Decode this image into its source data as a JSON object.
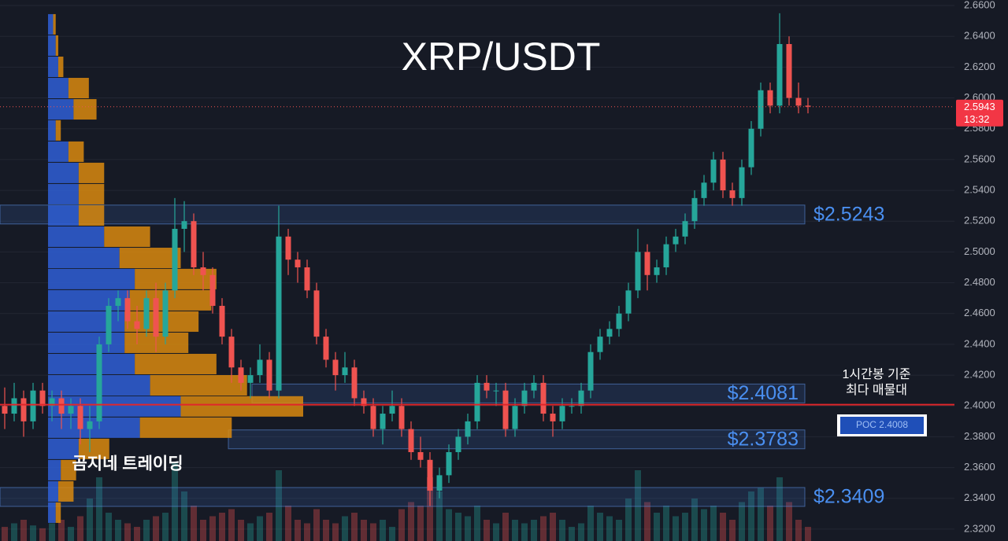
{
  "chart_data": {
    "type": "candlestick",
    "title": "XRP/USDT",
    "watermark": "곰지네 트레이딩",
    "candles": [
      [
        2.4,
        2.412,
        2.385,
        2.395
      ],
      [
        2.395,
        2.415,
        2.39,
        2.405
      ],
      [
        2.405,
        2.41,
        2.38,
        2.39
      ],
      [
        2.39,
        2.415,
        2.385,
        2.41
      ],
      [
        2.41,
        2.415,
        2.395,
        2.4
      ],
      [
        2.4,
        2.41,
        2.39,
        2.405
      ],
      [
        2.405,
        2.41,
        2.385,
        2.395
      ],
      [
        2.395,
        2.405,
        2.385,
        2.4
      ],
      [
        2.4,
        2.405,
        2.375,
        2.385
      ],
      [
        2.385,
        2.4,
        2.37,
        2.39
      ],
      [
        2.39,
        2.445,
        2.385,
        2.44
      ],
      [
        2.44,
        2.47,
        2.435,
        2.465
      ],
      [
        2.465,
        2.475,
        2.455,
        2.47
      ],
      [
        2.47,
        2.475,
        2.45,
        2.455
      ],
      [
        2.455,
        2.465,
        2.44,
        2.45
      ],
      [
        2.45,
        2.475,
        2.445,
        2.47
      ],
      [
        2.47,
        2.48,
        2.435,
        2.445
      ],
      [
        2.445,
        2.48,
        2.44,
        2.475
      ],
      [
        2.475,
        2.535,
        2.47,
        2.515
      ],
      [
        2.515,
        2.533,
        2.5,
        2.52
      ],
      [
        2.52,
        2.525,
        2.485,
        2.49
      ],
      [
        2.49,
        2.5,
        2.475,
        2.485
      ],
      [
        2.485,
        2.49,
        2.46,
        2.465
      ],
      [
        2.465,
        2.47,
        2.44,
        2.445
      ],
      [
        2.445,
        2.45,
        2.415,
        2.425
      ],
      [
        2.425,
        2.43,
        2.41,
        2.415
      ],
      [
        2.415,
        2.425,
        2.405,
        2.42
      ],
      [
        2.42,
        2.44,
        2.415,
        2.43
      ],
      [
        2.43,
        2.435,
        2.405,
        2.41
      ],
      [
        2.41,
        2.53,
        2.405,
        2.51
      ],
      [
        2.51,
        2.515,
        2.485,
        2.495
      ],
      [
        2.495,
        2.5,
        2.48,
        2.49
      ],
      [
        2.49,
        2.495,
        2.47,
        2.475
      ],
      [
        2.475,
        2.48,
        2.44,
        2.445
      ],
      [
        2.445,
        2.45,
        2.425,
        2.43
      ],
      [
        2.43,
        2.435,
        2.41,
        2.42
      ],
      [
        2.42,
        2.435,
        2.415,
        2.425
      ],
      [
        2.425,
        2.43,
        2.4,
        2.405
      ],
      [
        2.405,
        2.41,
        2.395,
        2.4
      ],
      [
        2.4,
        2.405,
        2.38,
        2.385
      ],
      [
        2.385,
        2.4,
        2.375,
        2.395
      ],
      [
        2.395,
        2.41,
        2.39,
        2.4
      ],
      [
        2.4,
        2.405,
        2.38,
        2.385
      ],
      [
        2.385,
        2.39,
        2.365,
        2.37
      ],
      [
        2.37,
        2.38,
        2.36,
        2.365
      ],
      [
        2.365,
        2.37,
        2.335,
        2.345
      ],
      [
        2.345,
        2.36,
        2.34,
        2.355
      ],
      [
        2.355,
        2.375,
        2.35,
        2.37
      ],
      [
        2.37,
        2.385,
        2.365,
        2.38
      ],
      [
        2.38,
        2.395,
        2.375,
        2.39
      ],
      [
        2.39,
        2.42,
        2.385,
        2.415
      ],
      [
        2.415,
        2.42,
        2.405,
        2.41
      ],
      [
        2.41,
        2.415,
        2.4,
        2.41
      ],
      [
        2.41,
        2.415,
        2.38,
        2.385
      ],
      [
        2.385,
        2.405,
        2.38,
        2.4
      ],
      [
        2.4,
        2.415,
        2.395,
        2.41
      ],
      [
        2.41,
        2.42,
        2.405,
        2.415
      ],
      [
        2.415,
        2.42,
        2.39,
        2.395
      ],
      [
        2.395,
        2.4,
        2.38,
        2.39
      ],
      [
        2.39,
        2.405,
        2.385,
        2.4
      ],
      [
        2.4,
        2.405,
        2.395,
        2.4
      ],
      [
        2.4,
        2.415,
        2.395,
        2.41
      ],
      [
        2.41,
        2.44,
        2.405,
        2.435
      ],
      [
        2.435,
        2.45,
        2.43,
        2.445
      ],
      [
        2.445,
        2.455,
        2.44,
        2.45
      ],
      [
        2.45,
        2.465,
        2.445,
        2.46
      ],
      [
        2.46,
        2.48,
        2.455,
        2.475
      ],
      [
        2.475,
        2.515,
        2.47,
        2.5
      ],
      [
        2.5,
        2.505,
        2.475,
        2.485
      ],
      [
        2.485,
        2.495,
        2.48,
        2.49
      ],
      [
        2.49,
        2.51,
        2.485,
        2.505
      ],
      [
        2.505,
        2.515,
        2.5,
        2.51
      ],
      [
        2.51,
        2.525,
        2.505,
        2.52
      ],
      [
        2.52,
        2.54,
        2.515,
        2.535
      ],
      [
        2.535,
        2.55,
        2.53,
        2.545
      ],
      [
        2.545,
        2.565,
        2.54,
        2.56
      ],
      [
        2.56,
        2.565,
        2.535,
        2.54
      ],
      [
        2.54,
        2.545,
        2.53,
        2.535
      ],
      [
        2.535,
        2.56,
        2.53,
        2.555
      ],
      [
        2.555,
        2.585,
        2.55,
        2.58
      ],
      [
        2.58,
        2.61,
        2.575,
        2.605
      ],
      [
        2.605,
        2.61,
        2.59,
        2.595
      ],
      [
        2.595,
        2.655,
        2.59,
        2.635
      ],
      [
        2.635,
        2.64,
        2.595,
        2.6
      ],
      [
        2.6,
        2.61,
        2.59,
        2.595
      ],
      [
        2.595,
        2.6,
        2.59,
        2.5943
      ]
    ],
    "volume": [
      20,
      25,
      30,
      22,
      18,
      25,
      30,
      20,
      35,
      60,
      90,
      40,
      30,
      25,
      20,
      30,
      35,
      40,
      110,
      70,
      50,
      30,
      35,
      40,
      45,
      30,
      25,
      35,
      40,
      100,
      50,
      30,
      25,
      45,
      30,
      25,
      35,
      40,
      30,
      25,
      30,
      20,
      45,
      55,
      50,
      90,
      70,
      45,
      40,
      35,
      50,
      30,
      25,
      40,
      30,
      25,
      30,
      35,
      40,
      30,
      20,
      25,
      50,
      40,
      35,
      30,
      60,
      100,
      55,
      40,
      50,
      35,
      40,
      60,
      45,
      50,
      40,
      30,
      55,
      70,
      75,
      50,
      90,
      55,
      30,
      20
    ],
    "up_color": "#26a69a",
    "down_color": "#ef5350",
    "volume_profile": {
      "prices": [
        2.6478,
        2.634,
        2.6202,
        2.6064,
        2.5926,
        2.5789,
        2.5651,
        2.5513,
        2.5375,
        2.5237,
        2.5099,
        2.4961,
        2.4824,
        2.4686,
        2.4548,
        2.441,
        2.4272,
        2.4134,
        2.3997,
        2.3859,
        2.3721,
        2.3583,
        2.3445,
        2.3307
      ],
      "buy": [
        2,
        3,
        4,
        8,
        10,
        3,
        8,
        12,
        12,
        12,
        22,
        28,
        34,
        32,
        30,
        30,
        34,
        40,
        52,
        36,
        12,
        5,
        4,
        3
      ],
      "sell": [
        1,
        1,
        2,
        8,
        9,
        2,
        6,
        10,
        10,
        10,
        18,
        24,
        32,
        32,
        29,
        25,
        32,
        38,
        48,
        36,
        12,
        6,
        6,
        2
      ],
      "buy_color": "#2f5fd6",
      "sell_color": "#d9890f"
    },
    "levels": [
      {
        "value": 2.5243,
        "label": "$2.5243"
      },
      {
        "value": 2.4081,
        "label": "$2.4081"
      },
      {
        "value": 2.3783,
        "label": "$2.3783"
      },
      {
        "value": 2.3409,
        "label": "$2.3409"
      }
    ],
    "poc": {
      "value": 2.4008,
      "label": "POC  2.4008"
    },
    "poc_note": [
      "1시간봉 기준",
      "최다 매물대"
    ],
    "last_price": 2.5943,
    "countdown": "13:32",
    "ylim": [
      2.3123,
      2.6636
    ],
    "yticks": [
      {
        "value": 2.32,
        "label": "2.3200"
      },
      {
        "value": 2.34,
        "label": "2.3400"
      },
      {
        "value": 2.36,
        "label": "2.3600"
      },
      {
        "value": 2.38,
        "label": "2.3800"
      },
      {
        "value": 2.4,
        "label": "2.4000"
      },
      {
        "value": 2.42,
        "label": "2.4200"
      },
      {
        "value": 2.44,
        "label": "2.4400"
      },
      {
        "value": 2.46,
        "label": "2.4600"
      },
      {
        "value": 2.48,
        "label": "2.4800"
      },
      {
        "value": 2.5,
        "label": "2.5000"
      },
      {
        "value": 2.52,
        "label": "2.5200"
      },
      {
        "value": 2.54,
        "label": "2.5400"
      },
      {
        "value": 2.56,
        "label": "2.5600"
      },
      {
        "value": 2.58,
        "label": "2.5800"
      },
      {
        "value": 2.6,
        "label": "2.6000"
      },
      {
        "value": 2.62,
        "label": "2.6200"
      },
      {
        "value": 2.64,
        "label": "2.6400"
      },
      {
        "value": 2.66,
        "label": "2.6600"
      }
    ]
  }
}
